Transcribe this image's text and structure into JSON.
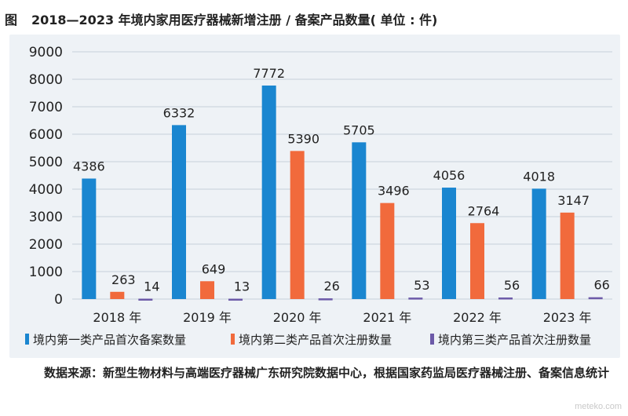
{
  "title": {
    "fig_label": "图",
    "text": "2018—2023 年境内家用医疗器械新增注册 / 备案产品数量( 单位 : 件)"
  },
  "chart_data": {
    "type": "bar",
    "categories": [
      "2018 年",
      "2019 年",
      "2020 年",
      "2021 年",
      "2022 年",
      "2023 年"
    ],
    "series": [
      {
        "name": "境内第一类产品首次备案数量",
        "values": [
          4386,
          6332,
          7772,
          5705,
          4056,
          4018
        ],
        "color": "#1a86d0"
      },
      {
        "name": "境内第二类产品首次注册数量",
        "values": [
          263,
          649,
          5390,
          3496,
          2764,
          3147
        ],
        "color": "#f16a3c"
      },
      {
        "name": "境内第三类产品首次注册数量",
        "values": [
          14,
          13,
          26,
          53,
          56,
          66
        ],
        "color": "#6c5aa8"
      }
    ],
    "yticks": [
      0,
      1000,
      2000,
      3000,
      4000,
      5000,
      6000,
      7000,
      8000,
      9000
    ],
    "ylim": [
      0,
      9000
    ],
    "grid": true,
    "legend_position": "bottom"
  },
  "source_text": "数据来源：新型生物材料与高端医疗器械广东研究院数据中心，根据国家药监局医疗器械注册、备案信息统计",
  "watermark": "meteko.com"
}
